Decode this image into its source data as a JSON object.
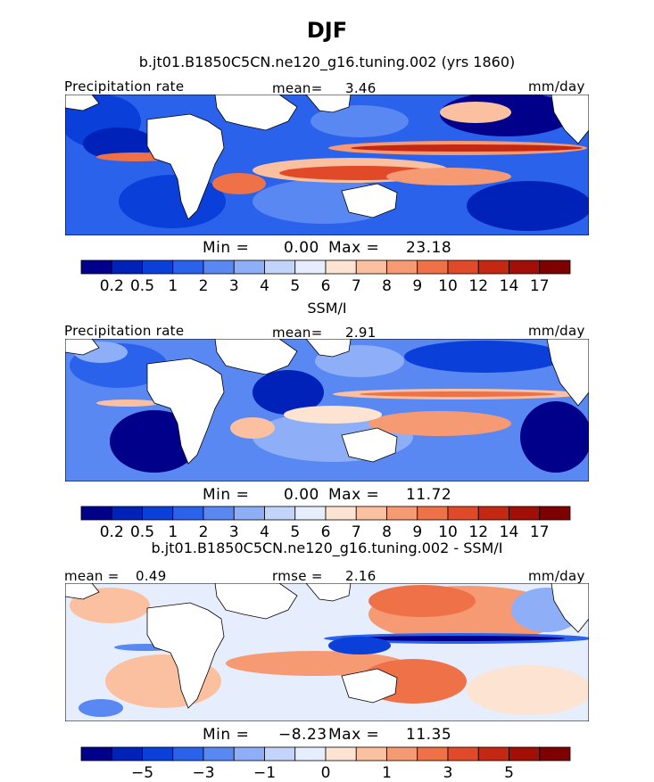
{
  "title": "DJF",
  "panels": [
    {
      "id": "model",
      "subtitle": "b.jt01.B1850C5CN.ne120_g16.tuning.002 (yrs 1860)",
      "left_label": "Precipitation rate",
      "mean_label": "mean=",
      "mean_value": "3.46",
      "units": "mm/day",
      "min_label": "Min =",
      "min_value": "0.00",
      "max_label": "Max =",
      "max_value": "23.18",
      "colorbar_ticks": [
        "0.2",
        "0.5",
        "1",
        "2",
        "3",
        "4",
        "5",
        "6",
        "7",
        "8",
        "9",
        "10",
        "12",
        "14",
        "17"
      ],
      "colors": [
        "#00008b",
        "#0022b8",
        "#0b3fd9",
        "#2a62ec",
        "#5a88f2",
        "#8eaff7",
        "#c3d4fb",
        "#e6eefd",
        "#fde3d2",
        "#fbc0a0",
        "#f59a72",
        "#ee7148",
        "#e04a28",
        "#c42812",
        "#a10f07",
        "#7e0000"
      ]
    },
    {
      "id": "obs",
      "subtitle": "SSM/I",
      "left_label": "Precipitation rate",
      "mean_label": "mean=",
      "mean_value": "2.91",
      "units": "mm/day",
      "min_label": "Min =",
      "min_value": "0.00",
      "max_label": "Max =",
      "max_value": "11.72",
      "colorbar_ticks": [
        "0.2",
        "0.5",
        "1",
        "2",
        "3",
        "4",
        "5",
        "6",
        "7",
        "8",
        "9",
        "10",
        "12",
        "14",
        "17"
      ],
      "colors": [
        "#00008b",
        "#0022b8",
        "#0b3fd9",
        "#2a62ec",
        "#5a88f2",
        "#8eaff7",
        "#c3d4fb",
        "#e6eefd",
        "#fde3d2",
        "#fbc0a0",
        "#f59a72",
        "#ee7148",
        "#e04a28",
        "#c42812",
        "#a10f07",
        "#7e0000"
      ]
    },
    {
      "id": "diff",
      "subtitle": "b.jt01.B1850C5CN.ne120_g16.tuning.002 - SSM/I",
      "left_label": "mean =",
      "left_value": "0.49",
      "mean_label": "rmse =",
      "mean_value": "2.16",
      "units": "mm/day",
      "min_label": "Min =",
      "min_value": "−8.23",
      "max_label": "Max =",
      "max_value": "11.35",
      "colorbar_ticks": [
        "−5",
        "−3",
        "−1",
        "0",
        "1",
        "3",
        "5"
      ],
      "colors": [
        "#00008b",
        "#0022b8",
        "#0b3fd9",
        "#2a62ec",
        "#5a88f2",
        "#8eaff7",
        "#c3d4fb",
        "#e6eefd",
        "#fde3d2",
        "#fbc0a0",
        "#f59a72",
        "#ee7148",
        "#e04a28",
        "#c42812",
        "#a10f07",
        "#7e0000"
      ]
    }
  ],
  "chart_data": [
    {
      "type": "heatmap",
      "title": "DJF",
      "subtitle": "b.jt01.B1850C5CN.ne120_g16.tuning.002 (yrs 1860)",
      "variable": "Precipitation rate",
      "units": "mm/day",
      "mean": 3.46,
      "min": 0.0,
      "max": 23.18,
      "levels": [
        0.2,
        0.5,
        1,
        2,
        3,
        4,
        5,
        6,
        7,
        8,
        9,
        10,
        12,
        14,
        17
      ]
    },
    {
      "type": "heatmap",
      "subtitle": "SSM/I",
      "variable": "Precipitation rate",
      "units": "mm/day",
      "mean": 2.91,
      "min": 0.0,
      "max": 11.72,
      "levels": [
        0.2,
        0.5,
        1,
        2,
        3,
        4,
        5,
        6,
        7,
        8,
        9,
        10,
        12,
        14,
        17
      ]
    },
    {
      "type": "heatmap",
      "subtitle": "b.jt01.B1850C5CN.ne120_g16.tuning.002 - SSM/I",
      "units": "mm/day",
      "mean": 0.49,
      "rmse": 2.16,
      "min": -8.23,
      "max": 11.35,
      "levels": [
        -5,
        -3,
        -1,
        0,
        1,
        3,
        5
      ]
    }
  ]
}
